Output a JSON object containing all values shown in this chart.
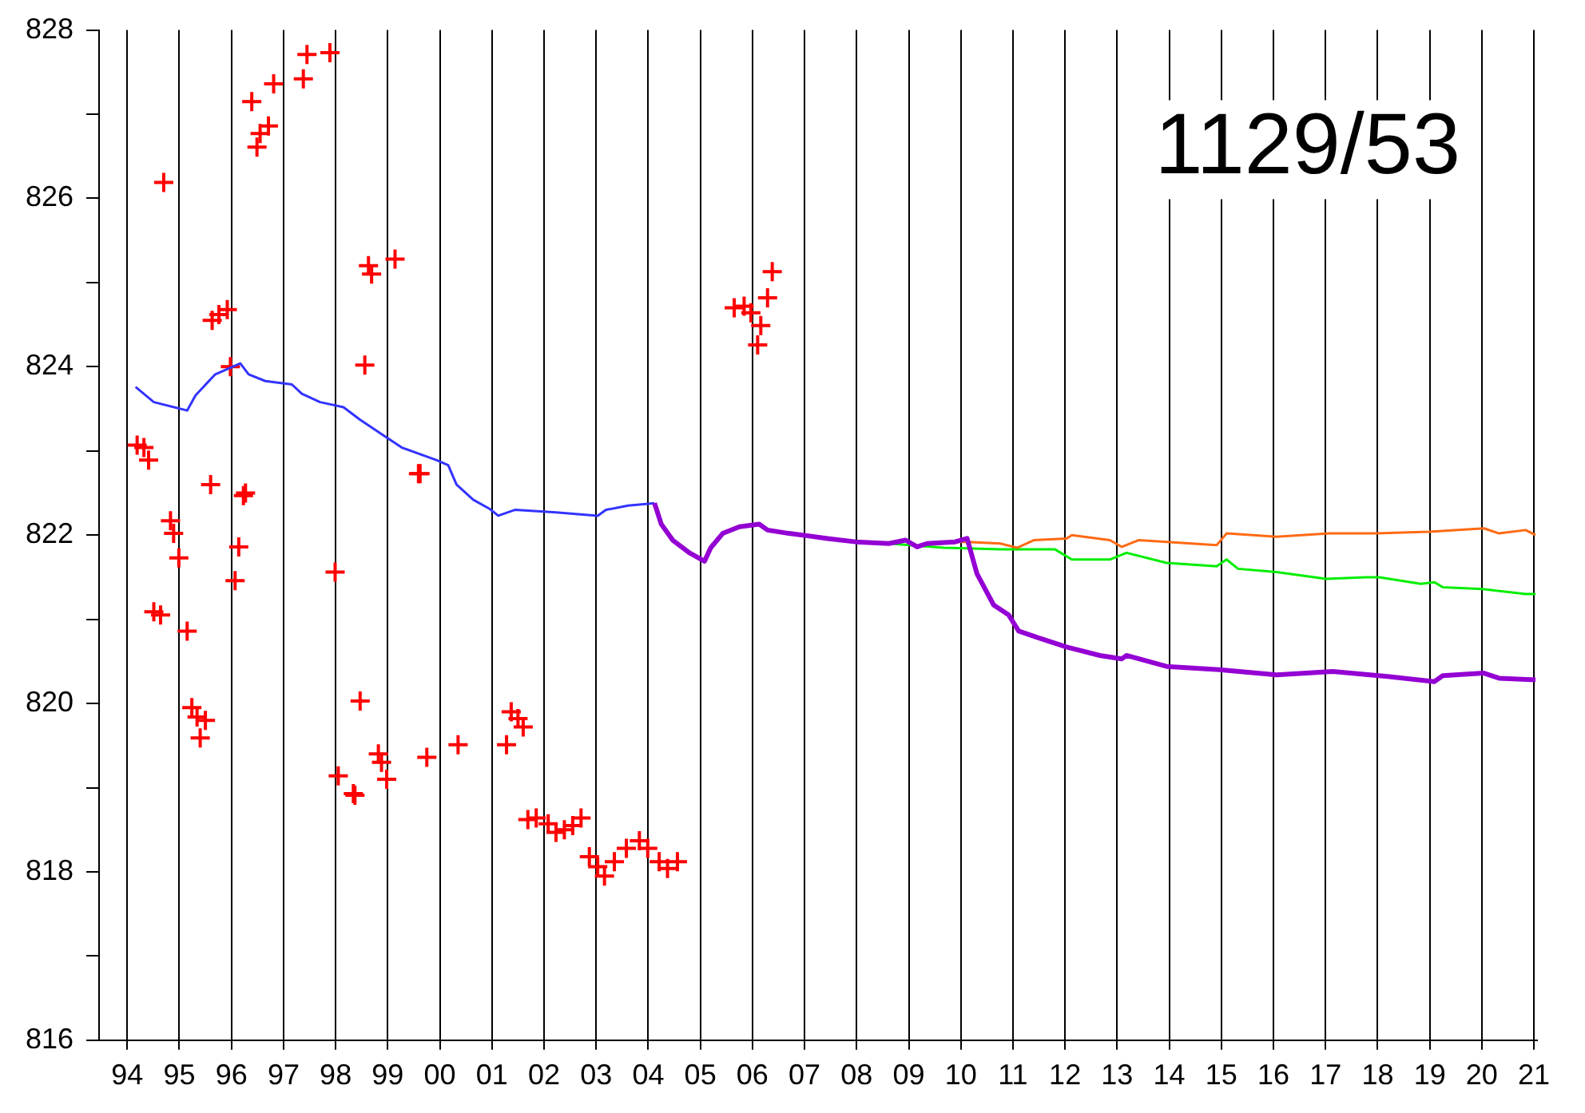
{
  "chart_data": {
    "type": "line",
    "title": "1129/53",
    "xlim": [
      1993.46,
      2021.06
    ],
    "xticks": [
      {
        "value": 1994,
        "label": "94"
      },
      {
        "value": 1995,
        "label": "95"
      },
      {
        "value": 1996,
        "label": "96"
      },
      {
        "value": 1997,
        "label": "97"
      },
      {
        "value": 1998,
        "label": "98"
      },
      {
        "value": 1999,
        "label": "99"
      },
      {
        "value": 2000,
        "label": "00"
      },
      {
        "value": 2001,
        "label": "01"
      },
      {
        "value": 2002,
        "label": "02"
      },
      {
        "value": 2003,
        "label": "03"
      },
      {
        "value": 2004,
        "label": "04"
      },
      {
        "value": 2005,
        "label": "05"
      },
      {
        "value": 2006,
        "label": "06"
      },
      {
        "value": 2007,
        "label": "07"
      },
      {
        "value": 2008,
        "label": "08"
      },
      {
        "value": 2009,
        "label": "09"
      },
      {
        "value": 2010,
        "label": "10"
      },
      {
        "value": 2011,
        "label": "11"
      },
      {
        "value": 2012,
        "label": "12"
      },
      {
        "value": 2013,
        "label": "13"
      },
      {
        "value": 2014,
        "label": "14"
      },
      {
        "value": 2015,
        "label": "15"
      },
      {
        "value": 2016,
        "label": "16"
      },
      {
        "value": 2017,
        "label": "17"
      },
      {
        "value": 2018,
        "label": "18"
      },
      {
        "value": 2019,
        "label": "19"
      },
      {
        "value": 2020,
        "label": "20"
      },
      {
        "value": 2021,
        "label": "21"
      }
    ],
    "ylim": [
      816,
      828
    ],
    "yticks": [
      816,
      {
        "value": 817,
        "label": null
      },
      818,
      {
        "value": 819,
        "label": null
      },
      820,
      {
        "value": 821,
        "label": null
      },
      822,
      {
        "value": 823,
        "label": null
      },
      824,
      {
        "value": 825,
        "label": null
      },
      826,
      {
        "value": 827,
        "label": null
      },
      828
    ],
    "grid": "x",
    "legend": false,
    "series": [
      {
        "type": "scatter",
        "marker": "cross",
        "color": "#ff0000",
        "x": [
          1994.19,
          1994.32,
          1994.41,
          1994.7,
          1994.83,
          1994.89,
          1994.99,
          1994.51,
          1994.64,
          1995.15,
          1995.24,
          1995.34,
          1995.5,
          1995.4,
          1995.6,
          1996.27,
          1996.23,
          1996.14,
          1996.07,
          1997.99,
          1998.47,
          1998.05,
          1998.34,
          1998.37,
          1998.82,
          1998.88,
          1998.98,
          1999.75,
          2000.35,
          1995.92,
          1995.76,
          1995.63,
          1995.98,
          1996.39,
          1996.55,
          1996.49,
          1996.71,
          1996.81,
          1997.38,
          1997.45,
          1997.89,
          1998.63,
          1998.69,
          1999.14,
          1998.56,
          1999.59,
          1999.62,
          2001.28,
          2001.37,
          2001.5,
          2001.6,
          2001.69,
          2001.85,
          2002.08,
          2002.23,
          2002.39,
          2002.55,
          2002.71,
          2002.87,
          2003.03,
          2003.16,
          2003.35,
          2003.58,
          2003.83,
          2003.99,
          2004.21,
          2004.37,
          2004.56,
          2006.38,
          2006.29,
          2005.65,
          2005.84,
          2005.97,
          2006.16,
          2006.1
        ],
        "values": [
          823.07,
          823.04,
          822.89,
          826.19,
          822.17,
          822.02,
          821.73,
          821.09,
          821.05,
          820.86,
          819.95,
          819.84,
          819.8,
          819.59,
          822.6,
          822.5,
          822.47,
          821.86,
          821.46,
          821.56,
          820.03,
          819.14,
          818.93,
          818.91,
          819.4,
          819.3,
          819.1,
          819.36,
          819.51,
          824.68,
          824.62,
          824.55,
          824.0,
          827.15,
          826.77,
          826.61,
          826.86,
          827.36,
          827.42,
          827.71,
          827.73,
          825.2,
          825.1,
          825.28,
          824.02,
          822.73,
          822.73,
          819.51,
          819.9,
          819.82,
          819.72,
          818.62,
          818.64,
          818.57,
          818.47,
          818.5,
          818.55,
          818.64,
          818.18,
          818.06,
          817.95,
          818.12,
          818.28,
          818.37,
          818.28,
          818.12,
          818.04,
          818.12,
          825.13,
          824.82,
          824.7,
          824.72,
          824.64,
          824.49,
          824.26
        ]
      },
      {
        "color": "#3333ff",
        "x": [
          1994.16,
          1994.51,
          1995.15,
          1995.31,
          1995.69,
          1996.17,
          1996.33,
          1996.65,
          1997.16,
          1997.35,
          1997.7,
          1998.15,
          1998.47,
          1998.98,
          1999.27,
          1999.94,
          2000.16,
          2000.32,
          2000.64,
          2000.96,
          2001.12,
          2001.44,
          2002.23,
          2003.03,
          2003.19,
          2003.61,
          2004.12
        ],
        "values": [
          823.76,
          823.58,
          823.48,
          823.66,
          823.91,
          824.04,
          823.91,
          823.83,
          823.79,
          823.68,
          823.58,
          823.52,
          823.37,
          823.16,
          823.04,
          822.89,
          822.83,
          822.6,
          822.42,
          822.31,
          822.23,
          822.3,
          822.27,
          822.23,
          822.3,
          822.35,
          822.38
        ]
      },
      {
        "color": "#00ee00",
        "x": [
          2008.62,
          2009.67,
          2010.76,
          2011.81,
          2012.13,
          2012.86,
          2013.18,
          2013.95,
          2014.91,
          2015.1,
          2015.32,
          2016.06,
          2017.01,
          2017.78,
          2018.03,
          2018.83,
          2019.09,
          2019.25,
          2020.01,
          2020.84,
          2021.03
        ],
        "values": [
          821.9,
          821.85,
          821.83,
          821.83,
          821.71,
          821.71,
          821.79,
          821.67,
          821.63,
          821.71,
          821.6,
          821.56,
          821.48,
          821.5,
          821.5,
          821.42,
          821.44,
          821.38,
          821.36,
          821.3,
          821.3
        ]
      },
      {
        "color": "#ff6a13",
        "x": [
          2009.89,
          2010.12,
          2010.76,
          2011.08,
          2011.4,
          2012.03,
          2012.13,
          2012.86,
          2013.09,
          2013.41,
          2014.91,
          2015.1,
          2016.06,
          2017.08,
          2017.97,
          2018.99,
          2020.04,
          2020.33,
          2020.84,
          2021.03
        ],
        "values": [
          821.92,
          821.92,
          821.9,
          821.85,
          821.94,
          821.96,
          822.0,
          821.94,
          821.86,
          821.94,
          821.88,
          822.02,
          821.98,
          822.02,
          822.02,
          822.04,
          822.08,
          822.02,
          822.06,
          822.0
        ]
      },
      {
        "color": "#9400d3",
        "x": [
          2004.12,
          2004.25,
          2004.47,
          2004.79,
          2005.08,
          2005.2,
          2005.43,
          2005.75,
          2006.13,
          2006.29,
          2006.7,
          2007.44,
          2007.98,
          2008.62,
          2008.94,
          2009.16,
          2009.35,
          2009.89,
          2010.12,
          2010.31,
          2010.63,
          2010.92,
          2011.11,
          2011.49,
          2012.03,
          2012.67,
          2013.09,
          2013.18,
          2013.95,
          2015.0,
          2016.06,
          2017.14,
          2018.19,
          2019.09,
          2019.25,
          2020.04,
          2020.33,
          2021.03
        ],
        "values": [
          822.38,
          822.13,
          821.94,
          821.79,
          821.69,
          821.85,
          822.02,
          822.1,
          822.13,
          822.06,
          822.02,
          821.96,
          821.92,
          821.9,
          821.94,
          821.86,
          821.9,
          821.92,
          821.96,
          821.54,
          821.17,
          821.05,
          820.86,
          820.78,
          820.67,
          820.57,
          820.53,
          820.57,
          820.44,
          820.4,
          820.34,
          820.38,
          820.32,
          820.26,
          820.33,
          820.36,
          820.3,
          820.28
        ]
      }
    ]
  }
}
